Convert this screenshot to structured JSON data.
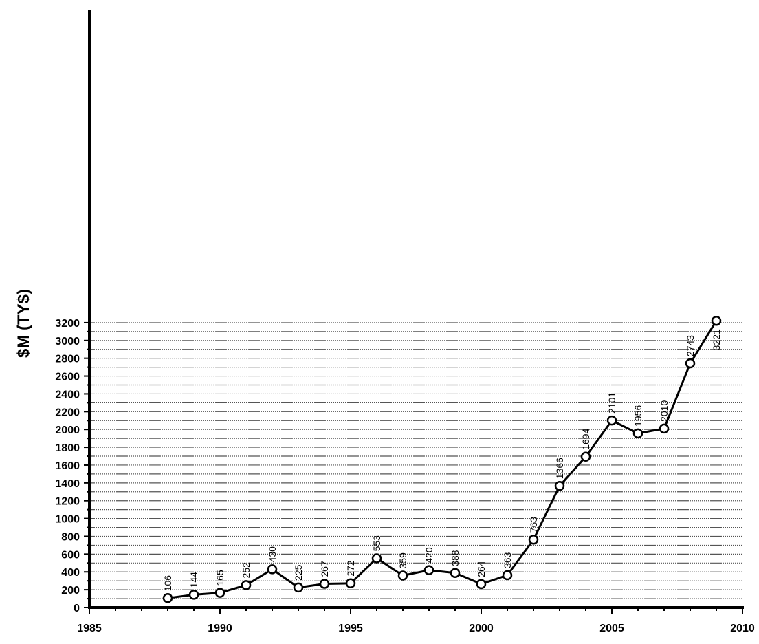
{
  "chart_data": {
    "type": "line",
    "title": "",
    "xlabel": "",
    "ylabel": "$M (TY$)",
    "xlim": [
      1985,
      2010
    ],
    "ylim": [
      0,
      3300
    ],
    "x_ticks": [
      1985,
      1990,
      1995,
      2000,
      2005,
      2010
    ],
    "y_ticks": [
      0,
      200,
      400,
      600,
      800,
      1000,
      1200,
      1400,
      1600,
      1800,
      2000,
      2200,
      2400,
      2600,
      2800,
      3000,
      3200
    ],
    "grid": true,
    "legend": "none",
    "colors": {
      "line": "#000000",
      "grid": "#555555",
      "marker_fill": "#ffffff"
    },
    "series": [
      {
        "x": [
          1988,
          1989,
          1990,
          1991,
          1992,
          1993,
          1994,
          1995,
          1996,
          1997,
          1998,
          1999,
          2000,
          2001,
          2002,
          2003,
          2004,
          2005,
          2006,
          2007,
          2008,
          2009
        ],
        "values": [
          106,
          144,
          165,
          252,
          430,
          225,
          267,
          272,
          553,
          359,
          420,
          388,
          264,
          363,
          763,
          1366,
          1694,
          2101,
          1956,
          2010,
          2743,
          3221
        ],
        "labels": [
          "106",
          "144",
          "165",
          "252",
          "430",
          "225",
          "267",
          "272",
          "553",
          "359",
          "420",
          "388",
          "264",
          "363",
          "763",
          "1366",
          "1694",
          "2101",
          "1956",
          "2010",
          "2743",
          "3221"
        ]
      }
    ]
  }
}
